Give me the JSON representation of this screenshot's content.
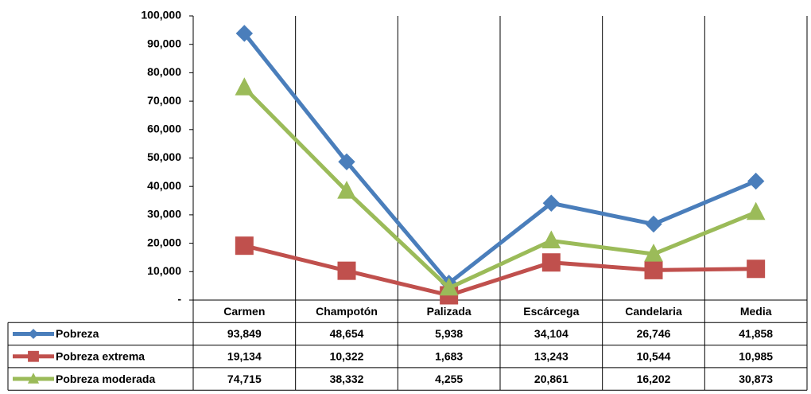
{
  "chart_data": {
    "type": "line",
    "categories": [
      "Carmen",
      "Champotón",
      "Palizada",
      "Escárcega",
      "Candelaria",
      "Media"
    ],
    "series": [
      {
        "name": "Pobreza",
        "color": "#4a7ebb",
        "marker": "diamond",
        "values": [
          93849,
          48654,
          5938,
          34104,
          26746,
          41858
        ],
        "value_labels": [
          "93,849",
          "48,654",
          "5,938",
          "34,104",
          "26,746",
          "41,858"
        ]
      },
      {
        "name": "Pobreza extrema",
        "color": "#c0504d",
        "marker": "square",
        "values": [
          19134,
          10322,
          1683,
          13243,
          10544,
          10985
        ],
        "value_labels": [
          "19,134",
          "10,322",
          "1,683",
          "13,243",
          "10,544",
          "10,985"
        ]
      },
      {
        "name": "Pobreza moderada",
        "color": "#9bbb59",
        "marker": "triangle",
        "values": [
          74715,
          38332,
          4255,
          20861,
          16202,
          30873
        ],
        "value_labels": [
          "74,715",
          "38,332",
          "4,255",
          "20,861",
          "16,202",
          "30,873"
        ]
      }
    ],
    "ylim": [
      0,
      100000
    ],
    "yticks": [
      {
        "value": 0,
        "label": "-"
      },
      {
        "value": 10000,
        "label": "10,000"
      },
      {
        "value": 20000,
        "label": "20,000"
      },
      {
        "value": 30000,
        "label": "30,000"
      },
      {
        "value": 40000,
        "label": "40,000"
      },
      {
        "value": 50000,
        "label": "50,000"
      },
      {
        "value": 60000,
        "label": "60,000"
      },
      {
        "value": 70000,
        "label": "70,000"
      },
      {
        "value": 80000,
        "label": "80,000"
      },
      {
        "value": 90000,
        "label": "90,000"
      },
      {
        "value": 100000,
        "label": "100,000"
      }
    ]
  }
}
